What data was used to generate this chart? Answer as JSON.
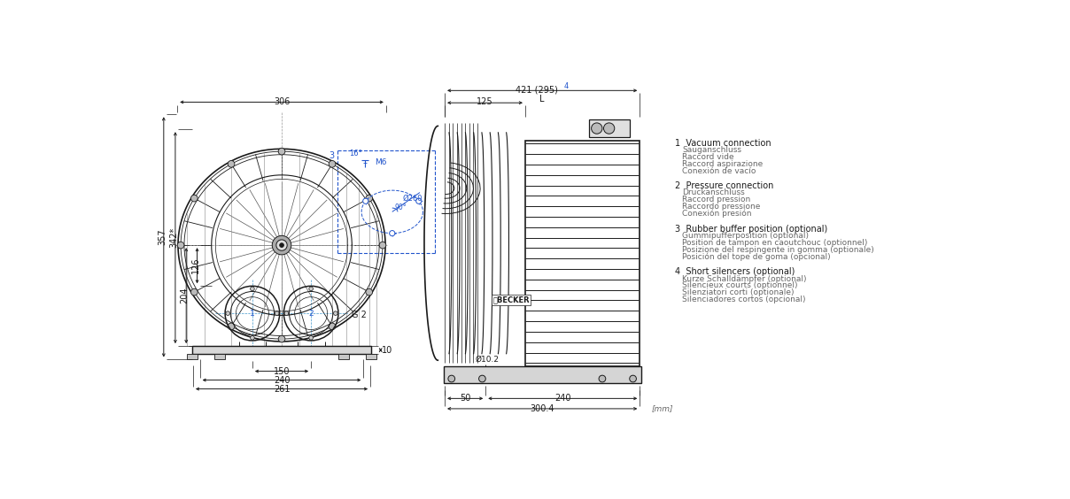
{
  "bg_color": "#ffffff",
  "line_color": "#1a1a1a",
  "dim_color": "#1a1a1a",
  "blue_color": "#2255cc",
  "gray_text": "#666666",
  "dark_gray": "#444444",
  "legend_items": [
    {
      "num": "1",
      "bold_line": "Vacuum connection",
      "lines": [
        "Sauganschluss",
        "Raccord vide",
        "Raccord aspirazione",
        "Conexión de vacío"
      ]
    },
    {
      "num": "2",
      "bold_line": "Pressure connection",
      "lines": [
        "Druckanschluss",
        "Raccord pression",
        "Raccordo pressione",
        "Conexión presión"
      ]
    },
    {
      "num": "3",
      "bold_line": "Rubber buffer position (optional)",
      "lines": [
        "Gummipufferposition (optional)",
        "Position de tampon en caoutchouc (optionnel)",
        "Posizione del respingente in gomma (optionale)",
        "Posición del tope de goma (opcional)"
      ]
    },
    {
      "num": "4",
      "bold_line": "Short silencers (optional)",
      "lines": [
        "Kurze Schalldämpfer (optional)",
        "Silencieux courts (optionnel)",
        "Silenziatori corti (optionale)",
        "Silenciadores cortos (opcional)"
      ]
    }
  ]
}
